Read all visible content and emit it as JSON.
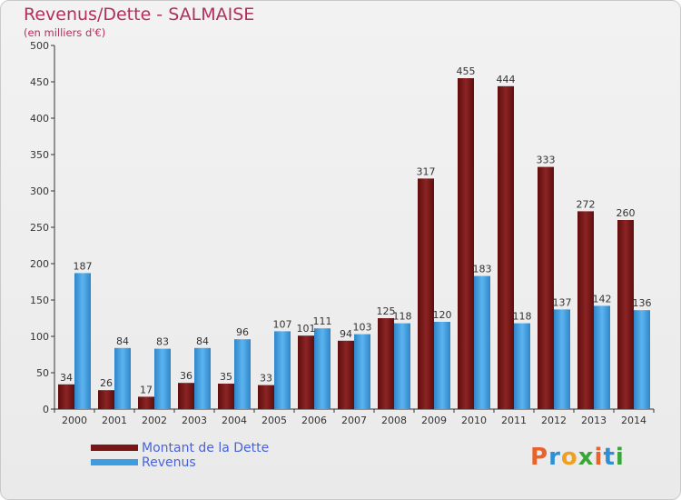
{
  "title": "Revenus/Dette - SALMAISE",
  "subtitle": "(en milliers d'€)",
  "logo": {
    "text": "Proxiti",
    "colors": [
      "#e8632b",
      "#2f8fd4",
      "#f0a020",
      "#3aa63a",
      "#e8632b",
      "#2f8fd4",
      "#3aa63a"
    ]
  },
  "legend": {
    "position": "bottom-left",
    "items": [
      {
        "label": "Montant de la Dette",
        "color": "#7a1515"
      },
      {
        "label": "Revenus",
        "color": "#3c9ee0"
      }
    ]
  },
  "chart_data": {
    "type": "bar",
    "title": "Revenus/Dette - SALMAISE",
    "subtitle": "(en milliers d'€)",
    "categories": [
      "2000",
      "2001",
      "2002",
      "2003",
      "2004",
      "2005",
      "2006",
      "2007",
      "2008",
      "2009",
      "2010",
      "2011",
      "2012",
      "2013",
      "2014"
    ],
    "series": [
      {
        "name": "Montant de la Dette",
        "color": "#7a1515",
        "values": [
          34,
          26,
          17,
          36,
          35,
          33,
          101,
          94,
          125,
          317,
          455,
          444,
          333,
          272,
          260
        ]
      },
      {
        "name": "Revenus",
        "color": "#3c9ee0",
        "values": [
          187,
          84,
          83,
          84,
          96,
          107,
          111,
          103,
          118,
          120,
          183,
          118,
          137,
          142,
          136
        ]
      }
    ],
    "ylim": [
      0,
      500
    ],
    "yticks": [
      0,
      50,
      100,
      150,
      200,
      250,
      300,
      350,
      400,
      450,
      500
    ],
    "grid": false,
    "xlabel": "",
    "ylabel": ""
  }
}
